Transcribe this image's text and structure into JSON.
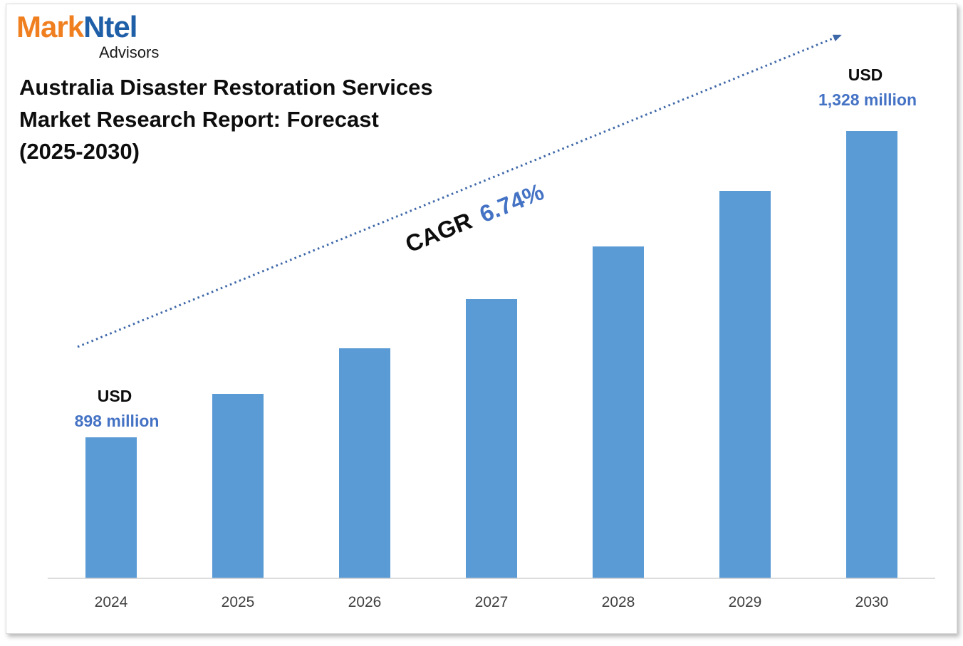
{
  "logo": {
    "brand_part1": "Mark",
    "brand_part2": "Ntel",
    "subtitle": "Advisors",
    "color_part1": "#f07f1f",
    "color_part2": "#1f5fa8"
  },
  "chart_data": {
    "type": "bar",
    "title": "Australia Disaster Restoration Services Market Research Report: Forecast (2025-2030)",
    "title_lines": [
      "Australia Disaster Restoration Services",
      "Market Research Report: Forecast",
      "(2025-2030)"
    ],
    "categories": [
      "2024",
      "2025",
      "2026",
      "2027",
      "2028",
      "2029",
      "2030"
    ],
    "values": [
      898,
      959,
      1023,
      1092,
      1166,
      1244,
      1328
    ],
    "unit": "USD million",
    "ylim": [
      700,
      1360
    ],
    "xlabel": "",
    "ylabel": "",
    "grid": false,
    "bar_color": "#5b9bd5",
    "annotations": {
      "start": {
        "currency": "USD",
        "value": "898 million"
      },
      "end": {
        "currency": "USD",
        "value": "1,328 million"
      },
      "cagr_label": "CAGR",
      "cagr_value": "6.74%"
    },
    "accent_color": "#4472c4",
    "trend_color": "#3e67a8"
  }
}
